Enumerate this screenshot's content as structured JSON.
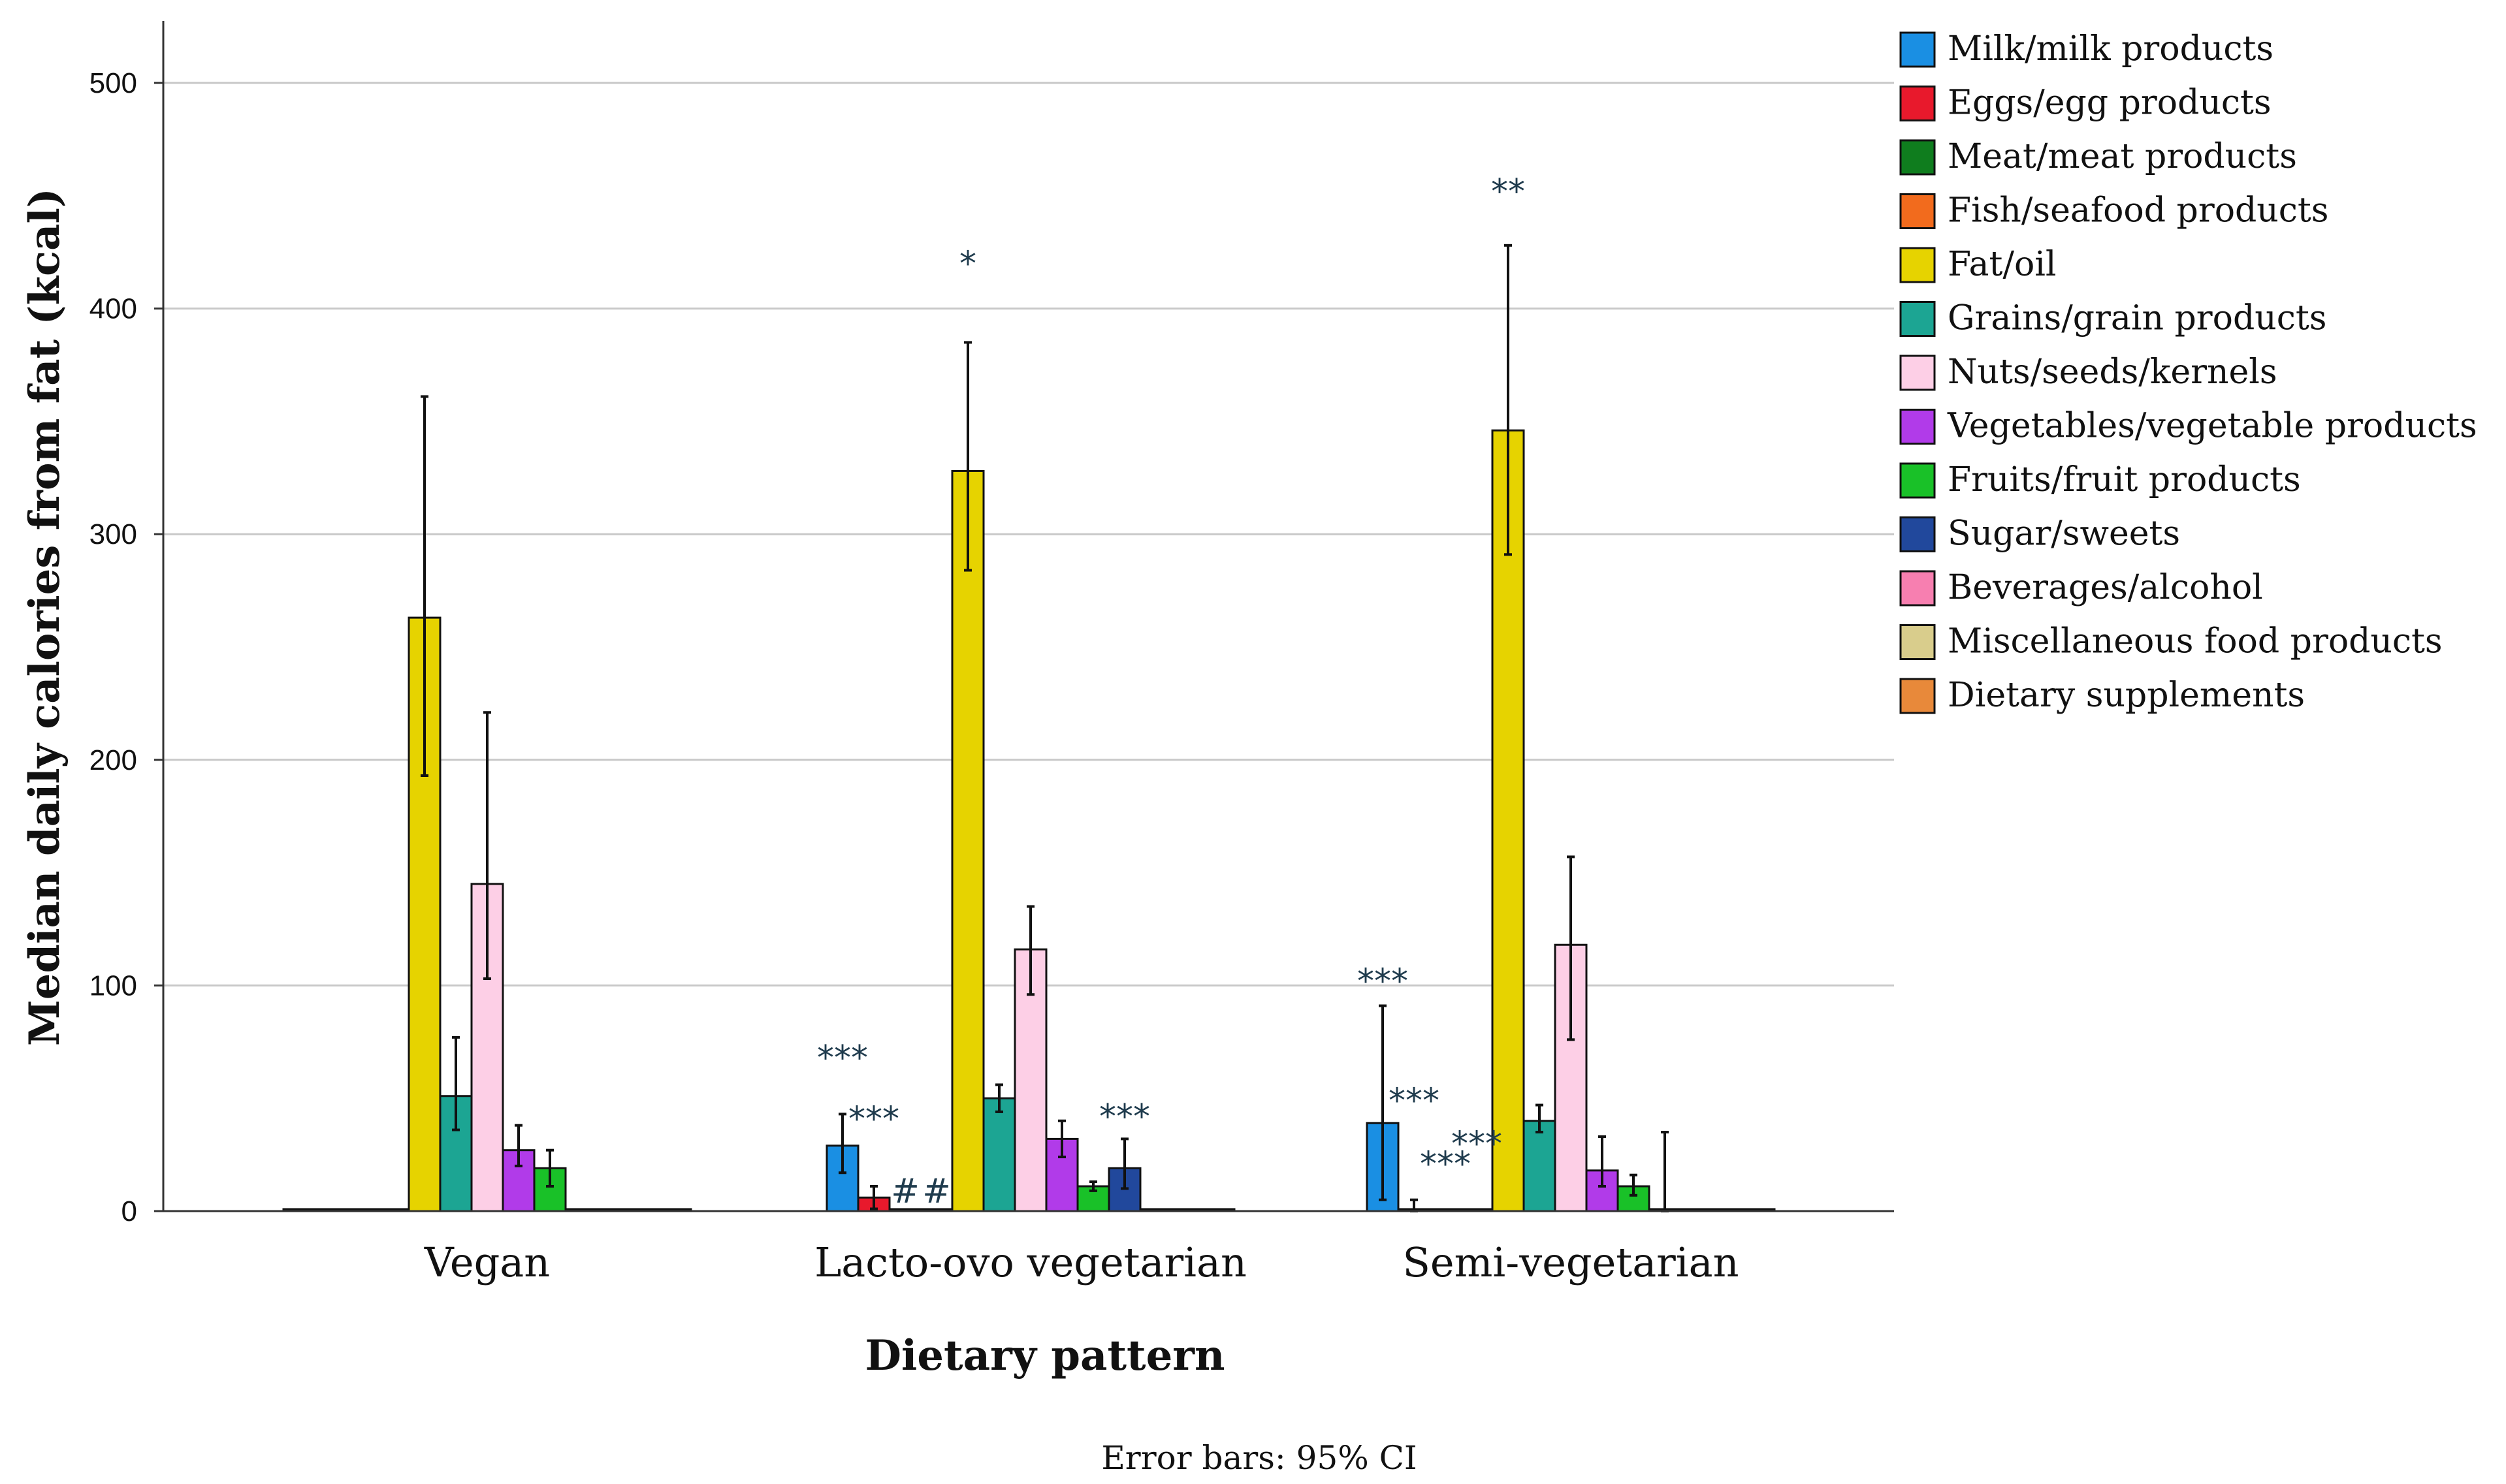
{
  "chart_data": {
    "type": "bar",
    "title": "",
    "xlabel": "Dietary pattern",
    "ylabel": "Median daily calories from fat (kcal)",
    "note": "Error bars: 95% CI",
    "ylim": [
      0,
      525
    ],
    "yticks": [
      0,
      100,
      200,
      300,
      400,
      500
    ],
    "ytick_labels": [
      "0",
      "100",
      "200",
      "300",
      "400",
      "500"
    ],
    "categories": [
      "Vegan",
      "Lacto-ovo vegetarian",
      "Semi-vegetarian"
    ],
    "legend_position": "right",
    "series": [
      {
        "name": "Milk/milk products",
        "color": "#1a8fe3",
        "values": [
          0,
          29,
          39
        ],
        "ci": [
          [
            0,
            0
          ],
          [
            17,
            43
          ],
          [
            5,
            91
          ]
        ]
      },
      {
        "name": "Eggs/egg products",
        "color": "#e8192c",
        "values": [
          0,
          6,
          0
        ],
        "ci": [
          [
            0,
            0
          ],
          [
            1,
            11
          ],
          [
            0,
            5
          ]
        ]
      },
      {
        "name": "Meat/meat products",
        "color": "#0f7d1e",
        "values": [
          0,
          0,
          0
        ],
        "ci": [
          [
            0,
            0
          ],
          [
            0,
            0
          ],
          [
            0,
            0
          ]
        ]
      },
      {
        "name": "Fish/seafood products",
        "color": "#f26b1d",
        "values": [
          0,
          0,
          0
        ],
        "ci": [
          [
            0,
            0
          ],
          [
            0,
            0
          ],
          [
            0,
            0
          ]
        ]
      },
      {
        "name": "Fat/oil",
        "color": "#e6d300",
        "values": [
          263,
          328,
          346
        ],
        "ci": [
          [
            193,
            361
          ],
          [
            284,
            385
          ],
          [
            291,
            428
          ]
        ]
      },
      {
        "name": "Grains/grain products",
        "color": "#1ca593",
        "values": [
          51,
          50,
          40
        ],
        "ci": [
          [
            36,
            77
          ],
          [
            44,
            56
          ],
          [
            35,
            47
          ]
        ]
      },
      {
        "name": "Nuts/seeds/kernels",
        "color": "#fdcfe6",
        "values": [
          145,
          116,
          118
        ],
        "ci": [
          [
            103,
            221
          ],
          [
            96,
            135
          ],
          [
            76,
            157
          ]
        ]
      },
      {
        "name": "Vegetables/vegetable products",
        "color": "#b13be9",
        "values": [
          27,
          32,
          18
        ],
        "ci": [
          [
            20,
            38
          ],
          [
            24,
            40
          ],
          [
            11,
            33
          ]
        ]
      },
      {
        "name": "Fruits/fruit products",
        "color": "#19c128",
        "values": [
          19,
          11,
          11
        ],
        "ci": [
          [
            11,
            27
          ],
          [
            9,
            13
          ],
          [
            7,
            16
          ]
        ]
      },
      {
        "name": "Sugar/sweets",
        "color": "#21489c",
        "values": [
          0,
          19,
          0
        ],
        "ci": [
          [
            0,
            0
          ],
          [
            10,
            32
          ],
          [
            0,
            35
          ]
        ]
      },
      {
        "name": "Beverages/alcohol",
        "color": "#f77fb0",
        "values": [
          0,
          0,
          0
        ],
        "ci": [
          [
            0,
            0
          ],
          [
            0,
            0
          ],
          [
            0,
            0
          ]
        ]
      },
      {
        "name": "Miscellaneous food products",
        "color": "#d9cd8c",
        "values": [
          0,
          0,
          0
        ],
        "ci": [
          [
            0,
            0
          ],
          [
            0,
            0
          ],
          [
            0,
            0
          ]
        ]
      },
      {
        "name": "Dietary supplements",
        "color": "#e8893a",
        "values": [
          0,
          0,
          0
        ],
        "ci": [
          [
            0,
            0
          ],
          [
            0,
            0
          ],
          [
            0,
            0
          ]
        ]
      }
    ],
    "annotations": [
      {
        "text": "*",
        "category": 1,
        "series": 4,
        "value": 420
      },
      {
        "text": "***",
        "category": 1,
        "series": 0,
        "value": 68
      },
      {
        "text": "***",
        "category": 1,
        "series": 1,
        "value": 41
      },
      {
        "text": "#",
        "category": 1,
        "series": 2,
        "value": 9
      },
      {
        "text": "#",
        "category": 1,
        "series": 3,
        "value": 9
      },
      {
        "text": "***",
        "category": 1,
        "series": 9,
        "value": 42
      },
      {
        "text": "**",
        "category": 2,
        "series": 4,
        "value": 452
      },
      {
        "text": "***",
        "category": 2,
        "series": 0,
        "value": 102
      },
      {
        "text": "***",
        "category": 2,
        "series": 1,
        "value": 49
      },
      {
        "text": "***",
        "category": 2,
        "series": 2,
        "value": 21
      },
      {
        "text": "***",
        "category": 2,
        "series": 3,
        "value": 30
      }
    ]
  }
}
